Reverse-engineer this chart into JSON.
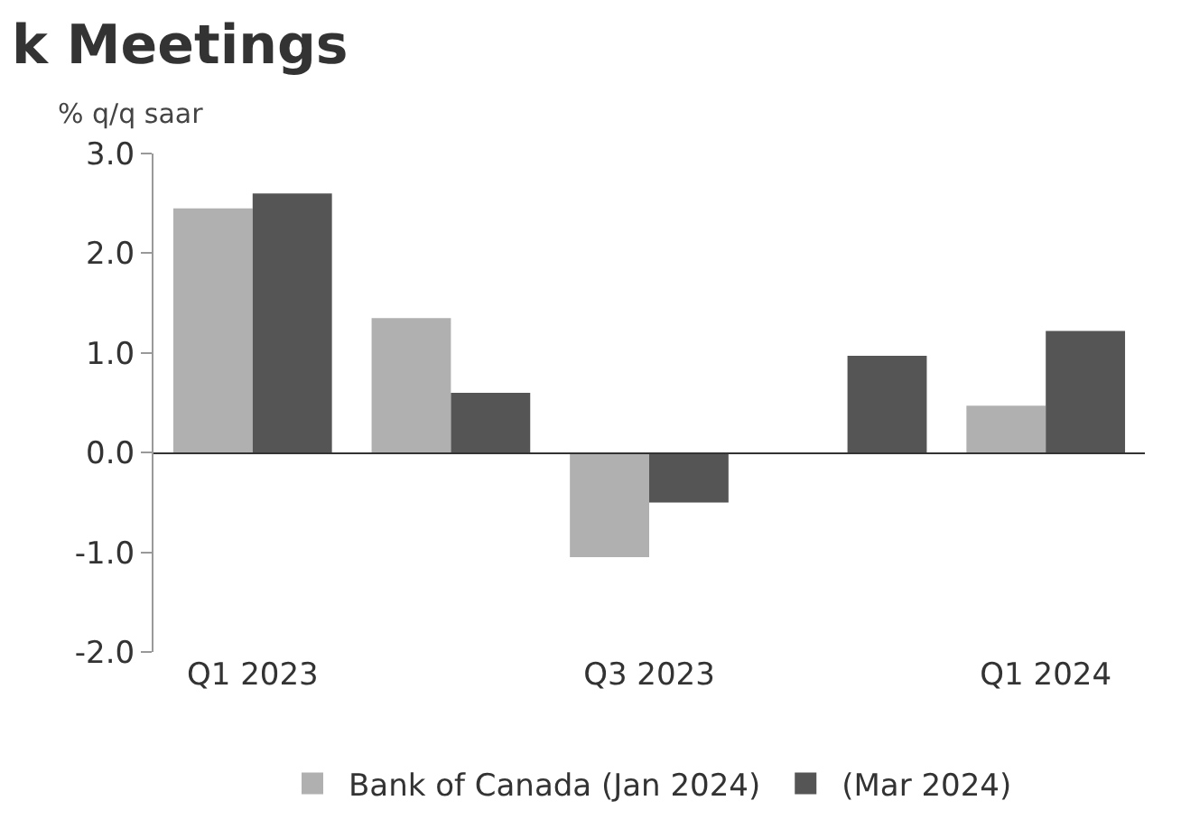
{
  "chart_data": {
    "type": "bar",
    "title": "k Meetings",
    "ylabel": "% q/q saar",
    "categories": [
      "Q1 2023",
      null,
      "Q3 2023",
      null,
      "Q1 2024"
    ],
    "series": [
      {
        "name": "Bank of Canada (Jan 2024)",
        "color": "#b0b0b0",
        "values": [
          2.45,
          1.35,
          -1.05,
          null,
          0.47
        ]
      },
      {
        "name": "(Mar 2024)",
        "color": "#555555",
        "values": [
          2.6,
          0.6,
          -0.5,
          0.97,
          1.22
        ]
      }
    ],
    "ylim": [
      -2,
      3
    ],
    "yticks": [
      {
        "value": -2,
        "label": "-2.0"
      },
      {
        "value": -1,
        "label": "-1.0"
      },
      {
        "value": 0,
        "label": "0.0"
      },
      {
        "value": 1,
        "label": "1.0"
      },
      {
        "value": 2,
        "label": "2.0"
      },
      {
        "value": 3,
        "label": "3.0"
      }
    ],
    "legend": "bottom"
  }
}
